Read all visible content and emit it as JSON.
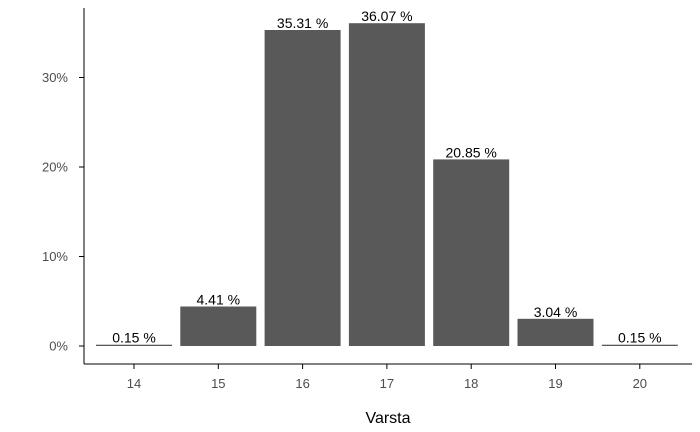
{
  "chart_data": {
    "type": "bar",
    "title": "",
    "xlabel": "Varsta",
    "ylabel": "",
    "categories": [
      "14",
      "15",
      "16",
      "17",
      "18",
      "19",
      "20"
    ],
    "values": [
      0.15,
      4.41,
      35.31,
      36.07,
      20.85,
      3.04,
      0.15
    ],
    "data_labels": [
      "0.15 %",
      "4.41 %",
      "35.31 %",
      "36.07 %",
      "20.85 %",
      "3.04 %",
      "0.15 %"
    ],
    "ylim": [
      0,
      38
    ],
    "yticks": [
      0,
      10,
      20,
      30
    ],
    "ytick_labels": [
      "0%",
      "10%",
      "20%",
      "30%"
    ],
    "grid": false,
    "legend": "none",
    "colors": {
      "bar": "#595959",
      "axis": "#000000",
      "tick_text": "#4d4d4d"
    }
  }
}
